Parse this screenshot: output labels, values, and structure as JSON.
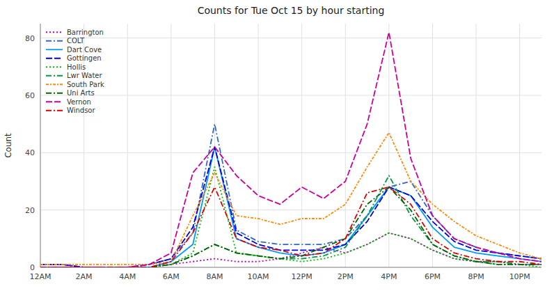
{
  "chart_data": {
    "type": "line",
    "title": "Counts for Tue Oct 15 by hour starting",
    "ylabel": "Count",
    "x": [
      0,
      1,
      2,
      3,
      4,
      5,
      6,
      7,
      8,
      9,
      10,
      11,
      12,
      13,
      14,
      15,
      16,
      17,
      18,
      19,
      20,
      21,
      22,
      23
    ],
    "xlim": [
      0,
      23
    ],
    "xticks": [
      {
        "value": 0,
        "label": "12AM"
      },
      {
        "value": 2,
        "label": "2AM"
      },
      {
        "value": 4,
        "label": "4AM"
      },
      {
        "value": 6,
        "label": "6AM"
      },
      {
        "value": 8,
        "label": "8AM"
      },
      {
        "value": 10,
        "label": "10AM"
      },
      {
        "value": 12,
        "label": "12PM"
      },
      {
        "value": 14,
        "label": "2PM"
      },
      {
        "value": 16,
        "label": "4PM"
      },
      {
        "value": 18,
        "label": "6PM"
      },
      {
        "value": 20,
        "label": "8PM"
      },
      {
        "value": 22,
        "label": "10PM"
      }
    ],
    "ylim": [
      0,
      85
    ],
    "yticks": [
      0,
      20,
      40,
      60,
      80
    ],
    "grid": true,
    "legend": "upper-left",
    "series": [
      {
        "name": "Barrington",
        "color": "#bb00bb",
        "line_style": "dotted",
        "values": [
          1,
          1,
          0,
          0,
          0,
          0,
          1,
          2,
          3,
          2,
          2,
          3,
          5,
          7,
          5,
          8,
          12,
          10,
          6,
          3,
          2,
          2,
          1,
          1
        ]
      },
      {
        "name": "COLT",
        "color": "#3366cc",
        "line_style": "dashdot",
        "values": [
          1,
          1,
          0,
          0,
          0,
          1,
          3,
          12,
          50,
          13,
          9,
          8,
          8,
          8,
          10,
          18,
          28,
          30,
          18,
          10,
          7,
          5,
          4,
          3
        ]
      },
      {
        "name": "Dart Cove",
        "color": "#0099ff",
        "line_style": "solid",
        "values": [
          0,
          0,
          0,
          0,
          0,
          0,
          2,
          8,
          42,
          10,
          7,
          5,
          4,
          5,
          8,
          18,
          28,
          25,
          14,
          7,
          5,
          4,
          3,
          2
        ]
      },
      {
        "name": "Gottingen",
        "color": "#0000dd",
        "line_style": "dashed",
        "values": [
          1,
          1,
          0,
          0,
          0,
          1,
          3,
          14,
          42,
          12,
          8,
          6,
          6,
          6,
          8,
          16,
          28,
          25,
          16,
          9,
          6,
          5,
          4,
          3
        ]
      },
      {
        "name": "Hollis",
        "color": "#00bb00",
        "line_style": "dotted",
        "values": [
          0,
          0,
          0,
          0,
          0,
          0,
          1,
          5,
          35,
          5,
          4,
          3,
          2,
          3,
          5,
          8,
          12,
          10,
          6,
          3,
          2,
          1,
          1,
          0
        ]
      },
      {
        "name": "Lwr Water",
        "color": "#009944",
        "line_style": "dashdot",
        "values": [
          0,
          0,
          0,
          0,
          0,
          0,
          1,
          4,
          8,
          5,
          4,
          3,
          3,
          4,
          7,
          18,
          32,
          18,
          8,
          4,
          2,
          2,
          1,
          1
        ]
      },
      {
        "name": "South Park",
        "color": "#ff8800",
        "line_style": "dotdash",
        "values": [
          1,
          1,
          1,
          1,
          1,
          1,
          2,
          18,
          33,
          18,
          17,
          15,
          17,
          17,
          22,
          35,
          47,
          30,
          22,
          16,
          11,
          8,
          5,
          3
        ]
      },
      {
        "name": "Uni Arts",
        "color": "#006600",
        "line_style": "dashdot",
        "values": [
          0,
          0,
          0,
          0,
          0,
          0,
          1,
          4,
          8,
          5,
          4,
          3,
          4,
          7,
          10,
          22,
          28,
          20,
          8,
          4,
          2,
          1,
          1,
          1
        ]
      },
      {
        "name": "Vernon",
        "color": "#cc0099",
        "line_style": "dashed",
        "values": [
          0,
          0,
          0,
          0,
          0,
          1,
          5,
          33,
          42,
          32,
          25,
          22,
          28,
          24,
          30,
          50,
          82,
          38,
          18,
          10,
          7,
          5,
          3,
          2
        ]
      },
      {
        "name": "Windsor",
        "color": "#dd0000",
        "line_style": "dashdot",
        "values": [
          0,
          0,
          0,
          0,
          0,
          0,
          2,
          12,
          28,
          10,
          7,
          6,
          4,
          5,
          10,
          26,
          28,
          22,
          10,
          5,
          3,
          2,
          2,
          1
        ]
      }
    ]
  }
}
